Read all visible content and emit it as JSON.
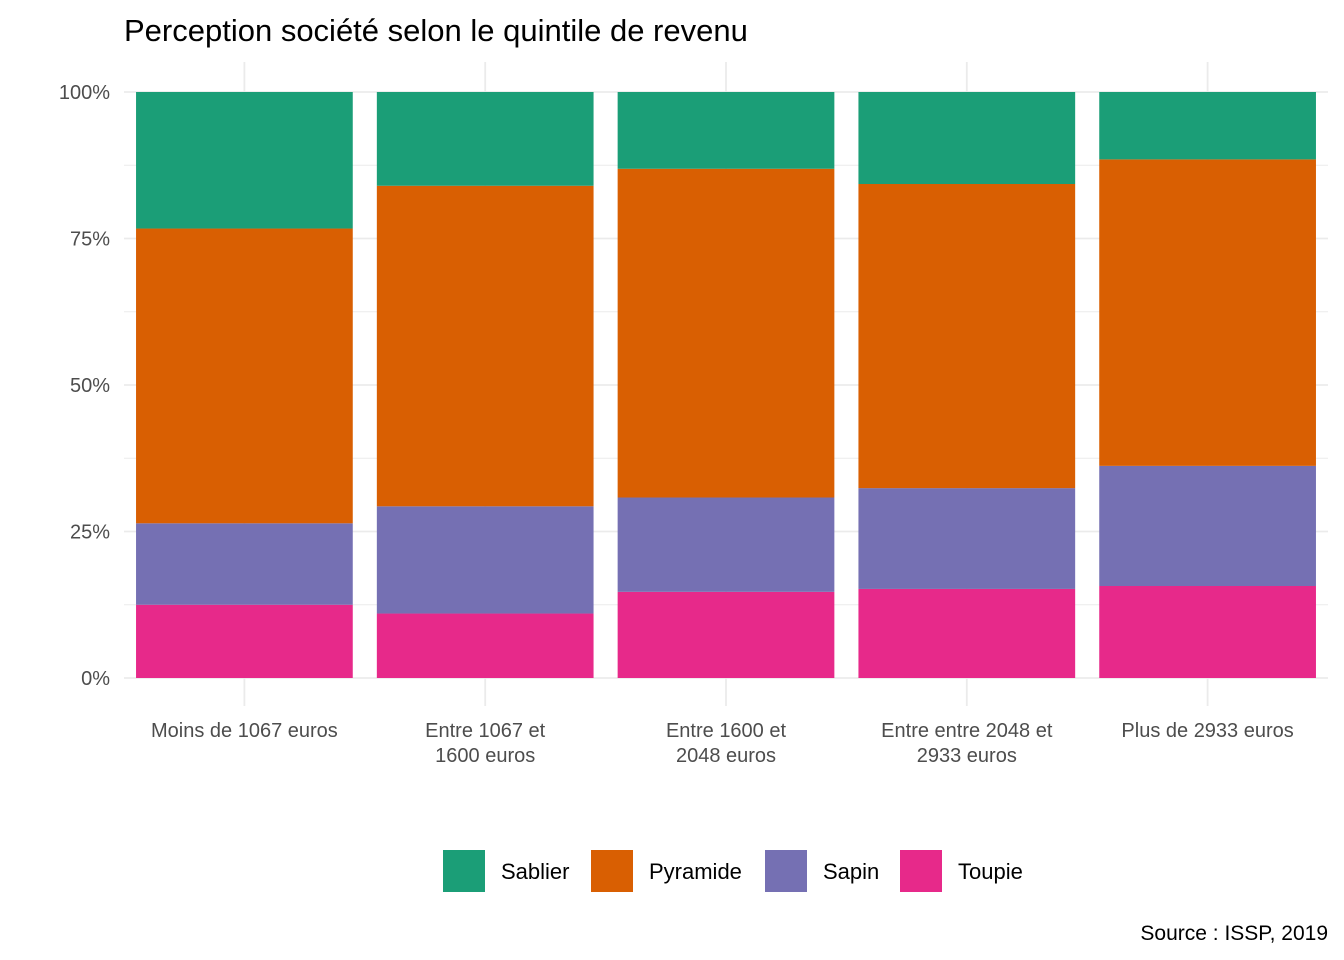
{
  "chart_data": {
    "type": "bar",
    "stacked": true,
    "title": "Perception société selon le quintile de revenu",
    "xlabel": "",
    "ylabel": "",
    "caption": "Source : ISSP, 2019",
    "ylim": [
      0,
      1
    ],
    "y_ticks": [
      "0%",
      "25%",
      "50%",
      "75%",
      "100%"
    ],
    "y_tick_values": [
      0,
      0.25,
      0.5,
      0.75,
      1
    ],
    "grid": true,
    "legend_position": "bottom",
    "categories": [
      "Moins de 1067 euros",
      "Entre 1067 et 1600 euros",
      "Entre 1600 et 2048 euros",
      "Entre entre 2048 et 2933 euros",
      "Plus de 2933 euros"
    ],
    "category_lines": [
      [
        "Moins de 1067 euros"
      ],
      [
        "Entre 1067 et",
        "1600 euros"
      ],
      [
        "Entre 1600 et",
        "2048 euros"
      ],
      [
        "Entre entre 2048 et",
        "2933 euros"
      ],
      [
        "Plus de 2933 euros"
      ]
    ],
    "series": [
      {
        "name": "Toupie",
        "color": "#E7298A",
        "values": [
          0.125,
          0.11,
          0.147,
          0.152,
          0.157
        ]
      },
      {
        "name": "Sapin",
        "color": "#7570B3",
        "values": [
          0.139,
          0.183,
          0.161,
          0.172,
          0.205
        ]
      },
      {
        "name": "Pyramide",
        "color": "#D95F02",
        "values": [
          0.503,
          0.547,
          0.561,
          0.519,
          0.523
        ]
      },
      {
        "name": "Sablier",
        "color": "#1B9E77",
        "values": [
          0.233,
          0.16,
          0.131,
          0.157,
          0.115
        ]
      }
    ],
    "legend_order": [
      "Sablier",
      "Pyramide",
      "Sapin",
      "Toupie"
    ]
  }
}
